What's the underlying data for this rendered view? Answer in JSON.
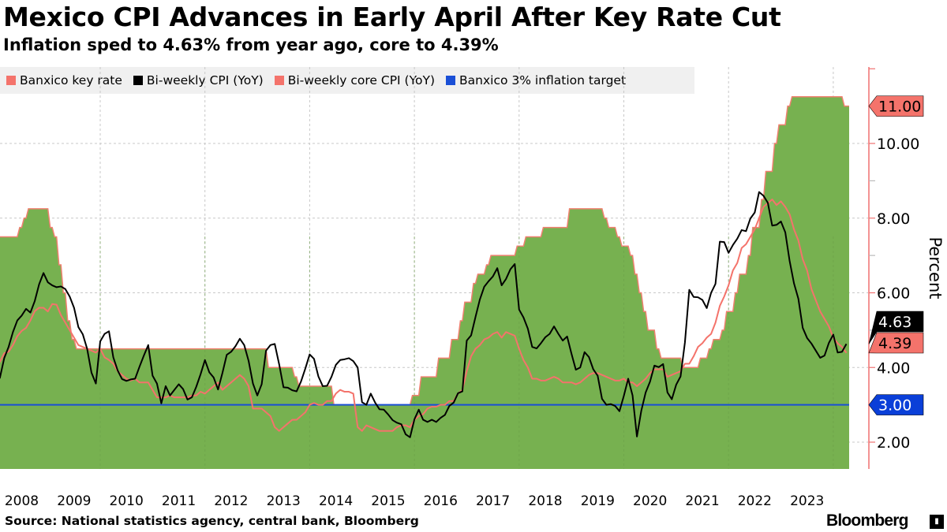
{
  "header": {
    "title": "Mexico CPI Advances in Early April After Key Rate Cut",
    "subtitle": "Inflation sped to 4.63% from year ago, core to 4.39%"
  },
  "footer": {
    "source": "Source: National statistics agency, central bank, Bloomberg",
    "logo": "Bloomberg"
  },
  "chart_data": {
    "type": "line",
    "title": "Mexico CPI Advances in Early April After Key Rate Cut",
    "subtitle": "Inflation sped to 4.63% from year ago, core to 4.39%",
    "ylabel": "Percent",
    "ylim": [
      1.3,
      12.2
    ],
    "y_ticks": [
      "2.00",
      "4.00",
      "6.00",
      "8.00",
      "10.00"
    ],
    "y_tick_values": [
      2,
      4,
      6,
      8,
      10
    ],
    "x_tick_labels": [
      "2008",
      "2009",
      "2010",
      "2011",
      "2012",
      "2013",
      "2014",
      "2015",
      "2016",
      "2017",
      "2018",
      "2019",
      "2020",
      "2021",
      "2022",
      "2023"
    ],
    "grid": true,
    "legend_position": "top-left",
    "colors": {
      "key_rate_fill": "#77b150",
      "key_rate_line": "#f08070",
      "cpi": "#000000",
      "core": "#f4736b",
      "target": "#1a4fd6",
      "axis": "#f07070"
    },
    "series": [
      {
        "name": "Banxico key rate",
        "kind": "area-step",
        "changes": [
          [
            "2008-01",
            7.5
          ],
          [
            "2008-06",
            7.75
          ],
          [
            "2008-07",
            8.0
          ],
          [
            "2008-08",
            8.25
          ],
          [
            "2009-01",
            7.75
          ],
          [
            "2009-02",
            7.5
          ],
          [
            "2009-03",
            6.75
          ],
          [
            "2009-04",
            6.0
          ],
          [
            "2009-05",
            5.25
          ],
          [
            "2009-06",
            4.75
          ],
          [
            "2009-07",
            4.5
          ],
          [
            "2013-03",
            4.0
          ],
          [
            "2013-09",
            3.75
          ],
          [
            "2013-10",
            3.5
          ],
          [
            "2014-06",
            3.0
          ],
          [
            "2015-12",
            3.25
          ],
          [
            "2016-02",
            3.75
          ],
          [
            "2016-06",
            4.25
          ],
          [
            "2016-09",
            4.75
          ],
          [
            "2016-11",
            5.25
          ],
          [
            "2016-12",
            5.75
          ],
          [
            "2017-02",
            6.25
          ],
          [
            "2017-03",
            6.5
          ],
          [
            "2017-05",
            6.75
          ],
          [
            "2017-06",
            7.0
          ],
          [
            "2017-12",
            7.25
          ],
          [
            "2018-02",
            7.5
          ],
          [
            "2018-06",
            7.75
          ],
          [
            "2018-12",
            8.25
          ],
          [
            "2019-08",
            8.0
          ],
          [
            "2019-09",
            7.75
          ],
          [
            "2019-11",
            7.5
          ],
          [
            "2019-12",
            7.25
          ],
          [
            "2020-02",
            7.0
          ],
          [
            "2020-03",
            6.5
          ],
          [
            "2020-04",
            6.0
          ],
          [
            "2020-05",
            5.5
          ],
          [
            "2020-06",
            5.0
          ],
          [
            "2020-08",
            4.5
          ],
          [
            "2020-09",
            4.25
          ],
          [
            "2021-02",
            4.0
          ],
          [
            "2021-06",
            4.25
          ],
          [
            "2021-08",
            4.5
          ],
          [
            "2021-09",
            4.75
          ],
          [
            "2021-11",
            5.0
          ],
          [
            "2021-12",
            5.5
          ],
          [
            "2022-02",
            6.0
          ],
          [
            "2022-03",
            6.5
          ],
          [
            "2022-05",
            7.0
          ],
          [
            "2022-06",
            7.75
          ],
          [
            "2022-08",
            8.5
          ],
          [
            "2022-09",
            9.25
          ],
          [
            "2022-11",
            10.0
          ],
          [
            "2022-12",
            10.5
          ],
          [
            "2023-02",
            11.0
          ],
          [
            "2023-03",
            11.25
          ],
          [
            "2024-03",
            11.0
          ],
          [
            "2024-04",
            11.0
          ]
        ],
        "last_label": "11.00"
      },
      {
        "name": "Bi-weekly CPI (YoY)",
        "kind": "line",
        "monthly": {
          "2008": [
            3.7,
            3.72,
            4.25,
            4.55,
            4.95,
            5.26,
            5.39,
            5.57,
            5.47,
            5.78,
            6.23,
            6.53
          ],
          "2009": [
            6.28,
            6.2,
            6.15,
            6.17,
            6.1,
            5.9,
            5.6,
            5.08,
            4.89,
            4.5,
            3.86,
            3.57
          ],
          "2010": [
            4.7,
            4.9,
            4.97,
            4.27,
            3.92,
            3.69,
            3.64,
            3.68,
            3.7,
            4.02,
            4.32,
            4.6
          ],
          "2011": [
            3.78,
            3.57,
            3.04,
            3.5,
            3.25,
            3.4,
            3.55,
            3.42,
            3.14,
            3.2,
            3.48,
            3.82
          ],
          "2012": [
            4.2,
            3.87,
            3.73,
            3.41,
            3.85,
            4.34,
            4.42,
            4.57,
            4.77,
            4.6,
            4.18,
            3.57
          ],
          "2013": [
            3.25,
            3.55,
            4.45,
            4.6,
            4.63,
            4.09,
            3.47,
            3.46,
            3.39,
            3.36,
            3.62,
            3.97
          ],
          "2014": [
            4.35,
            4.23,
            3.76,
            3.5,
            3.51,
            3.75,
            4.07,
            4.2,
            4.22,
            4.25,
            4.17,
            4.0
          ],
          "2015": [
            3.07,
            3.0,
            3.3,
            3.06,
            2.88,
            2.87,
            2.74,
            2.59,
            2.52,
            2.48,
            2.21,
            2.13
          ],
          "2016": [
            2.61,
            2.87,
            2.6,
            2.54,
            2.6,
            2.54,
            2.65,
            2.73,
            2.97,
            3.06,
            3.31,
            3.36
          ],
          "2017": [
            4.72,
            4.86,
            5.35,
            5.82,
            6.16,
            6.31,
            6.44,
            6.66,
            6.2,
            6.37,
            6.63,
            6.77
          ],
          "2018": [
            5.55,
            5.34,
            5.04,
            4.55,
            4.51,
            4.65,
            4.81,
            4.9,
            5.1,
            4.9,
            4.72,
            4.83
          ],
          "2019": [
            4.37,
            3.94,
            4.0,
            4.41,
            4.28,
            3.95,
            3.78,
            3.16,
            3.0,
            3.02,
            2.97,
            2.83
          ],
          "2020": [
            3.24,
            3.7,
            3.25,
            2.15,
            2.84,
            3.33,
            3.62,
            4.05,
            4.01,
            4.09,
            3.33,
            3.15
          ],
          "2021": [
            3.54,
            3.76,
            4.67,
            6.08,
            5.89,
            5.88,
            5.81,
            5.59,
            6.0,
            6.24,
            7.37,
            7.36
          ],
          "2022": [
            7.07,
            7.28,
            7.45,
            7.68,
            7.65,
            7.99,
            8.15,
            8.7,
            8.6,
            8.41,
            7.8,
            7.82
          ],
          "2023": [
            7.91,
            7.62,
            6.85,
            6.25,
            5.84,
            5.06,
            4.79,
            4.64,
            4.45,
            4.26,
            4.32,
            4.66
          ],
          "2024": [
            4.88,
            4.4,
            4.42,
            4.63
          ]
        },
        "last_label": "4.63"
      },
      {
        "name": "Bi-weekly core CPI (YoY)",
        "kind": "line",
        "monthly": {
          "2008": [
            4.1,
            4.15,
            4.38,
            4.42,
            4.6,
            4.84,
            4.98,
            5.06,
            5.26,
            5.51,
            5.6,
            5.6
          ],
          "2009": [
            5.5,
            5.7,
            5.68,
            5.4,
            5.2,
            5.0,
            4.8,
            4.6,
            4.55,
            4.5,
            4.45,
            4.4
          ],
          "2010": [
            4.5,
            4.27,
            4.2,
            4.1,
            3.9,
            3.8,
            3.7,
            3.65,
            3.7,
            3.6,
            3.6,
            3.6
          ],
          "2011": [
            3.4,
            3.2,
            3.2,
            3.2,
            3.25,
            3.2,
            3.2,
            3.2,
            3.2,
            3.25,
            3.25,
            3.35
          ],
          "2012": [
            3.3,
            3.4,
            3.5,
            3.6,
            3.4,
            3.5,
            3.6,
            3.7,
            3.8,
            3.7,
            3.5,
            2.9
          ],
          "2013": [
            2.9,
            2.9,
            2.8,
            2.7,
            2.4,
            2.3,
            2.4,
            2.5,
            2.6,
            2.6,
            2.7,
            2.8
          ],
          "2014": [
            3.0,
            3.05,
            3.0,
            3.0,
            3.1,
            3.1,
            3.3,
            3.4,
            3.35,
            3.35,
            3.3,
            2.4
          ],
          "2015": [
            2.3,
            2.45,
            2.4,
            2.35,
            2.3,
            2.3,
            2.3,
            2.3,
            2.4,
            2.45,
            2.45,
            2.4
          ],
          "2016": [
            2.6,
            2.7,
            2.75,
            2.9,
            2.95,
            2.95,
            3.0,
            3.0,
            3.1,
            3.1,
            3.3,
            3.4
          ],
          "2017": [
            3.9,
            4.3,
            4.5,
            4.6,
            4.75,
            4.8,
            4.9,
            4.95,
            4.8,
            4.95,
            4.9,
            4.85
          ],
          "2018": [
            4.5,
            4.2,
            4.0,
            3.7,
            3.7,
            3.65,
            3.65,
            3.7,
            3.75,
            3.7,
            3.6,
            3.6
          ],
          "2019": [
            3.6,
            3.55,
            3.6,
            3.7,
            3.8,
            3.85,
            3.85,
            3.8,
            3.75,
            3.7,
            3.65,
            3.65
          ],
          "2020": [
            3.7,
            3.6,
            3.6,
            3.5,
            3.6,
            3.7,
            3.85,
            3.95,
            3.95,
            3.95,
            3.75,
            3.8
          ],
          "2021": [
            3.85,
            3.9,
            4.1,
            4.1,
            4.3,
            4.55,
            4.65,
            4.8,
            4.9,
            5.2,
            5.65,
            5.9
          ],
          "2022": [
            6.2,
            6.6,
            6.8,
            7.2,
            7.3,
            7.5,
            7.7,
            8.0,
            8.3,
            8.4,
            8.5,
            8.35
          ],
          "2023": [
            8.45,
            8.3,
            8.1,
            7.7,
            7.4,
            6.9,
            6.6,
            6.1,
            5.8,
            5.5,
            5.3,
            5.1
          ],
          "2024": [
            4.8,
            4.65,
            4.55,
            4.39
          ]
        },
        "last_label": "4.39"
      },
      {
        "name": "Banxico 3% inflation target",
        "kind": "hline",
        "value": 3.0,
        "last_label": "3.00"
      }
    ]
  }
}
